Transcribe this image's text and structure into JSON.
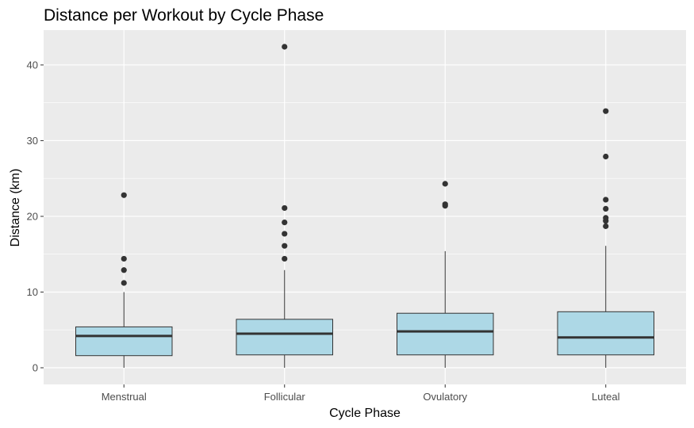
{
  "chart_data": {
    "type": "box",
    "title": "Distance per Workout by Cycle Phase",
    "xlabel": "Cycle Phase",
    "ylabel": "Distance (km)",
    "ylim": [
      -2.2,
      44.6
    ],
    "yticks": [
      0,
      10,
      20,
      30,
      40
    ],
    "grid": true,
    "categories": [
      "Menstrual",
      "Follicular",
      "Ovulatory",
      "Luteal"
    ],
    "boxes": [
      {
        "category": "Menstrual",
        "min": 0,
        "q1": 1.6,
        "median": 4.2,
        "q3": 5.4,
        "max": 10.0,
        "outliers": [
          11.2,
          12.9,
          14.4,
          22.8
        ]
      },
      {
        "category": "Follicular",
        "min": 0,
        "q1": 1.7,
        "median": 4.5,
        "q3": 6.4,
        "max": 12.9,
        "outliers": [
          14.4,
          16.1,
          17.7,
          19.2,
          21.1,
          42.4
        ]
      },
      {
        "category": "Ovulatory",
        "min": 0,
        "q1": 1.7,
        "median": 4.8,
        "q3": 7.2,
        "max": 15.4,
        "outliers": [
          21.4,
          21.6,
          24.3
        ]
      },
      {
        "category": "Luteal",
        "min": 0,
        "q1": 1.7,
        "median": 4.0,
        "q3": 7.4,
        "max": 16.1,
        "outliers": [
          18.7,
          19.4,
          19.8,
          21.0,
          22.2,
          27.9,
          33.9
        ]
      }
    ],
    "colors": {
      "panel": "#ebebeb",
      "grid": "#ffffff",
      "box_fill": "#add8e6",
      "box_line": "#333333",
      "outlier": "#333333"
    }
  }
}
